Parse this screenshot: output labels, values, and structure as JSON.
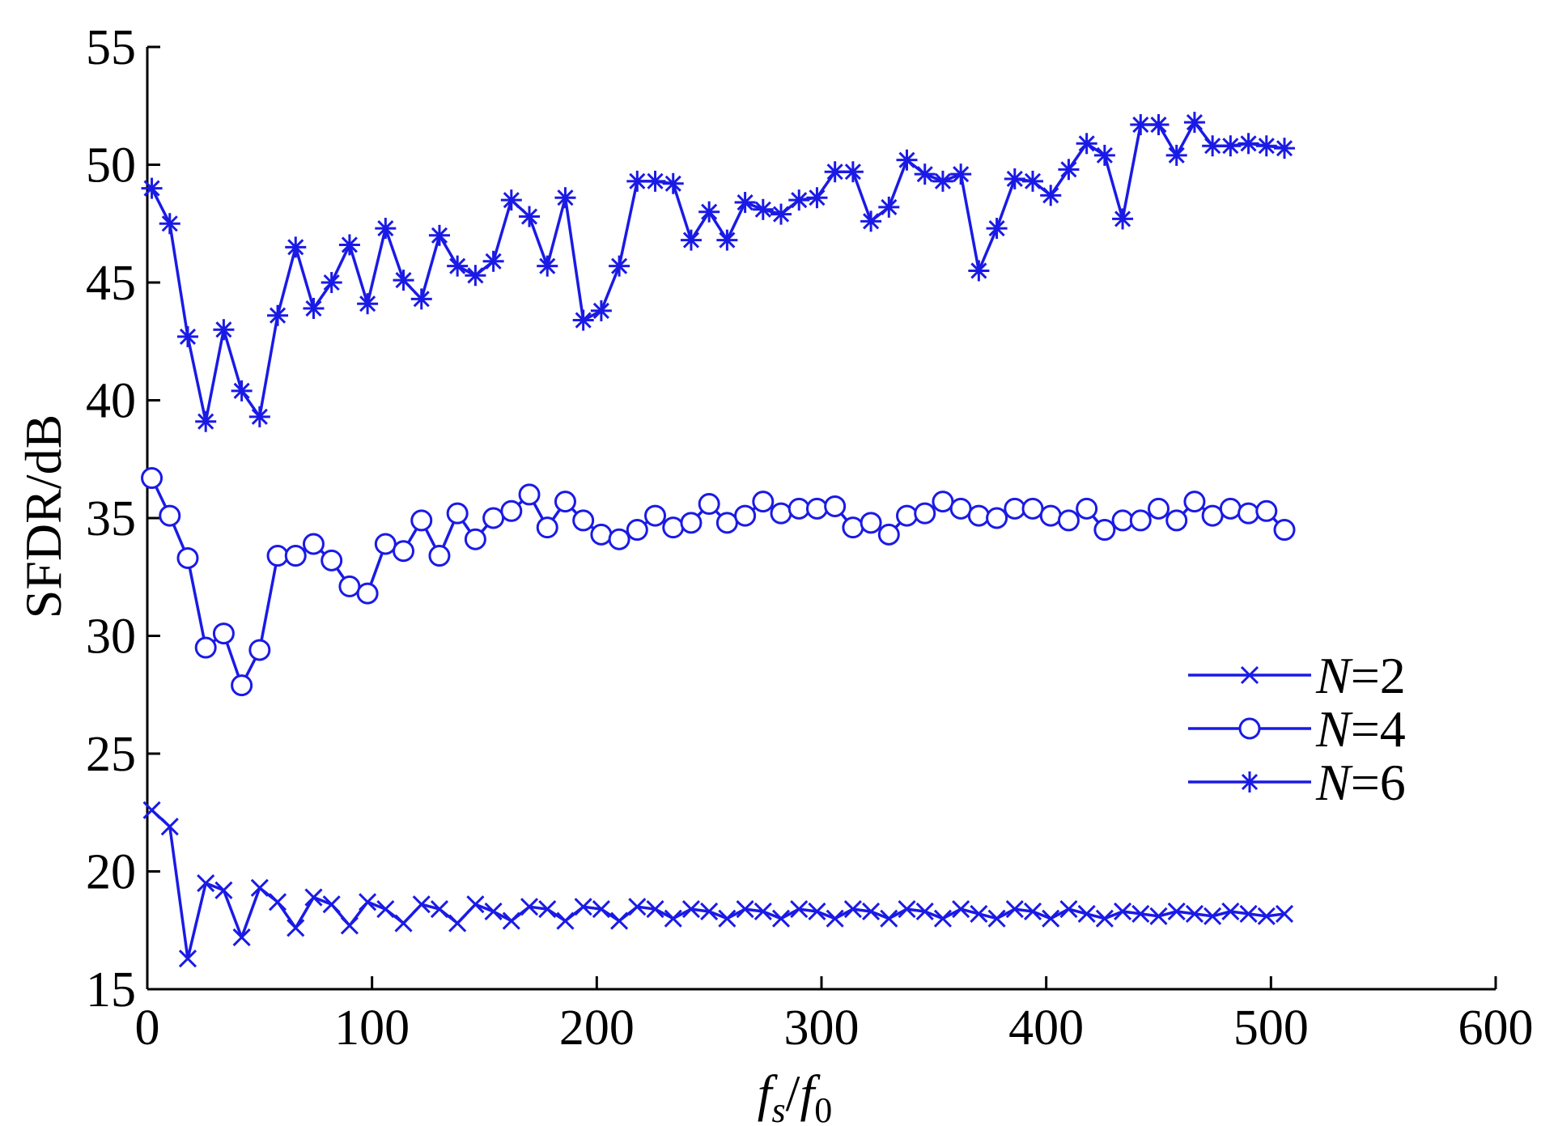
{
  "colors": {
    "series": "#1a1ae6",
    "axis": "#000000",
    "background": "#ffffff"
  },
  "chart_data": {
    "type": "line",
    "xlabel": "f_s/f_0",
    "ylabel": "SFDR/dB",
    "xlim": [
      0,
      600
    ],
    "ylim": [
      15,
      55
    ],
    "xticks": [
      0,
      100,
      200,
      300,
      400,
      500,
      600
    ],
    "yticks": [
      15,
      20,
      25,
      30,
      35,
      40,
      45,
      50,
      55
    ],
    "grid": false,
    "legend_position": "right",
    "x": [
      2,
      10,
      18,
      26,
      34,
      42,
      50,
      58,
      66,
      74,
      82,
      90,
      98,
      106,
      114,
      122,
      130,
      138,
      146,
      154,
      162,
      170,
      178,
      186,
      194,
      202,
      210,
      218,
      226,
      234,
      242,
      250,
      258,
      266,
      274,
      282,
      290,
      298,
      306,
      314,
      322,
      330,
      338,
      346,
      354,
      362,
      370,
      378,
      386,
      394,
      402,
      410,
      418,
      426,
      434,
      442,
      450,
      458,
      466,
      474,
      482,
      490,
      498,
      506
    ],
    "series": [
      {
        "name": "N=2",
        "marker": "x",
        "values": [
          22.6,
          21.9,
          16.3,
          19.5,
          19.2,
          17.2,
          19.3,
          18.7,
          17.6,
          18.9,
          18.6,
          17.7,
          18.7,
          18.4,
          17.8,
          18.6,
          18.4,
          17.8,
          18.6,
          18.3,
          17.9,
          18.5,
          18.4,
          17.9,
          18.5,
          18.4,
          17.9,
          18.5,
          18.4,
          18.0,
          18.4,
          18.3,
          18.0,
          18.4,
          18.3,
          18.0,
          18.4,
          18.3,
          18.0,
          18.4,
          18.3,
          18.0,
          18.4,
          18.3,
          18.0,
          18.4,
          18.2,
          18.0,
          18.4,
          18.3,
          18.0,
          18.4,
          18.2,
          18.0,
          18.3,
          18.2,
          18.1,
          18.3,
          18.2,
          18.1,
          18.3,
          18.2,
          18.1,
          18.2
        ]
      },
      {
        "name": "N=4",
        "marker": "o",
        "values": [
          36.7,
          35.1,
          33.3,
          29.5,
          30.1,
          27.9,
          29.4,
          33.4,
          33.4,
          33.9,
          33.2,
          32.1,
          31.8,
          33.9,
          33.6,
          34.9,
          33.4,
          35.2,
          34.1,
          35.0,
          35.3,
          36.0,
          34.6,
          35.7,
          34.9,
          34.3,
          34.1,
          34.5,
          35.1,
          34.6,
          34.8,
          35.6,
          34.8,
          35.1,
          35.7,
          35.2,
          35.4,
          35.4,
          35.5,
          34.6,
          34.8,
          34.3,
          35.1,
          35.2,
          35.7,
          35.4,
          35.1,
          35.0,
          35.4,
          35.4,
          35.1,
          34.9,
          35.4,
          34.5,
          34.9,
          34.9,
          35.4,
          34.9,
          35.7,
          35.1,
          35.4,
          35.2,
          35.3,
          34.5
        ]
      },
      {
        "name": "N=6",
        "marker": "*",
        "values": [
          49.0,
          47.5,
          42.7,
          39.1,
          43.0,
          40.4,
          39.3,
          43.6,
          46.5,
          43.9,
          45.0,
          46.6,
          44.1,
          47.3,
          45.1,
          44.3,
          47.0,
          45.7,
          45.3,
          45.9,
          48.5,
          47.8,
          45.7,
          48.6,
          43.4,
          43.8,
          45.7,
          49.3,
          49.3,
          49.2,
          46.8,
          48.0,
          46.8,
          48.4,
          48.1,
          47.9,
          48.5,
          48.6,
          49.7,
          49.7,
          47.6,
          48.2,
          50.2,
          49.6,
          49.3,
          49.6,
          45.5,
          47.3,
          49.4,
          49.3,
          48.7,
          49.8,
          50.9,
          50.4,
          47.7,
          51.7,
          51.7,
          50.4,
          51.8,
          50.8,
          50.8,
          50.9,
          50.8,
          50.7
        ]
      }
    ]
  }
}
